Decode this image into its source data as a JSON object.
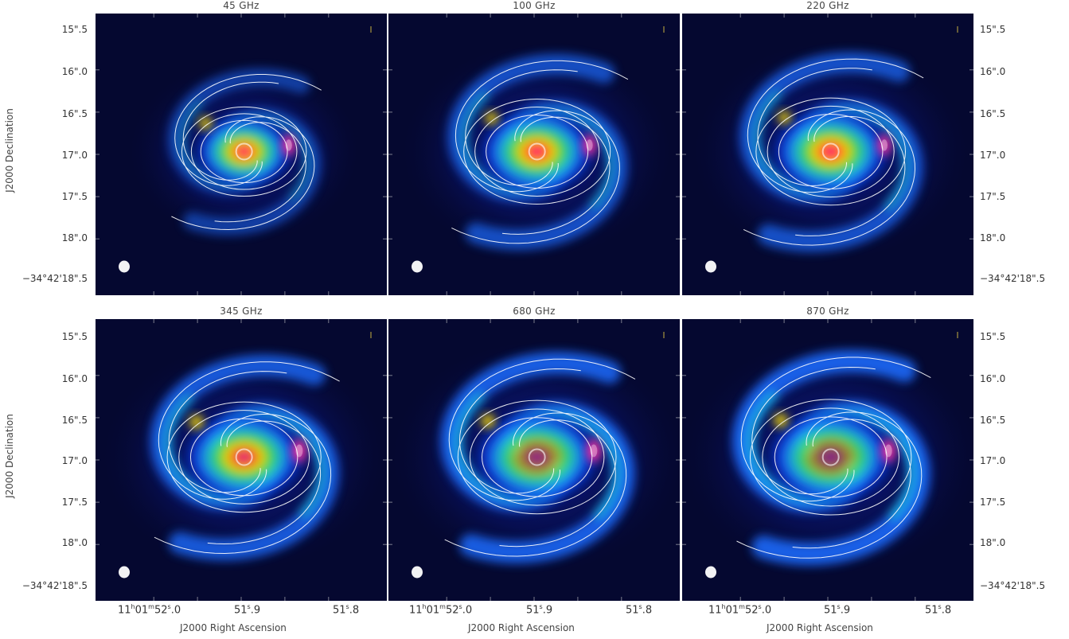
{
  "panels": [
    {
      "title": "45 GHz"
    },
    {
      "title": "100 GHz"
    },
    {
      "title": "220 GHz"
    },
    {
      "title": "345 GHz"
    },
    {
      "title": "680 GHz"
    },
    {
      "title": "870 GHz"
    }
  ],
  "yaxis": {
    "title": "J2000 Declination",
    "ticks": [
      "15\".5",
      "16\".0",
      "16\".5",
      "17\".0",
      "17\".5",
      "18\".0",
      "−34°42'18\".5"
    ]
  },
  "xaxis": {
    "title": "J2000 Right Ascension",
    "tick1_main": "11",
    "tick1_h": "h",
    "tick1_mid": "01",
    "tick1_m": "m",
    "tick1_end": "52",
    "tick1_s": "s",
    "tick1_frac": ".0",
    "tick2_a": "51",
    "tick2_s": "s",
    "tick2_b": ".9",
    "tick3_a": "51",
    "tick3_s": "s",
    "tick3_b": ".8"
  },
  "colors": {
    "background": "#050830",
    "contour": "#ffffff",
    "beam": "#ffffff"
  }
}
